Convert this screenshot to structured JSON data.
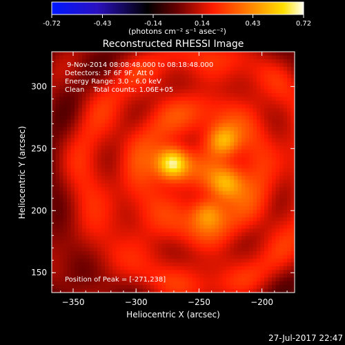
{
  "chart_data": {
    "type": "heatmap",
    "title": "Reconstructed RHESSI Image",
    "xlabel": "Heliocentric X (arcsec)",
    "ylabel": "Heliocentric Y (arcsec)",
    "xlim": [
      -367,
      -174
    ],
    "ylim": [
      134,
      328
    ],
    "x_ticks": [
      -350,
      -300,
      -250,
      -200
    ],
    "y_ticks": [
      150,
      200,
      250,
      300
    ],
    "colorbar": {
      "ticks": [
        "-0.72",
        "-0.43",
        "-0.14",
        "0.14",
        "0.43",
        "0.72"
      ],
      "range": [
        -0.72,
        0.72
      ],
      "unit_label": "(photons cm⁻² s⁻¹ asec⁻²)",
      "colormap": "blue-black-red-yellow-white"
    },
    "annotations": {
      "line1": "9-Nov-2014 08:08:48.000 to 08:18:48.000",
      "line2": "Detectors: 3F 6F 9F, Att 0",
      "line3": "Energy Range: 3.0 - 6.0 keV",
      "line4": "Clean    Total counts: 1.06E+05",
      "peak": "Position of Peak = [-271,238]"
    },
    "sources": [
      {
        "x": -271,
        "y": 238,
        "intensity": 0.72,
        "sigma": 9
      },
      {
        "x": -231,
        "y": 256,
        "intensity": 0.48,
        "sigma": 9
      },
      {
        "x": -229,
        "y": 222,
        "intensity": 0.52,
        "sigma": 10
      },
      {
        "x": -243,
        "y": 198,
        "intensity": 0.4,
        "sigma": 9
      }
    ],
    "background_level": 0.2
  },
  "footer": {
    "timestamp": "27-Jul-2017 22:47"
  }
}
